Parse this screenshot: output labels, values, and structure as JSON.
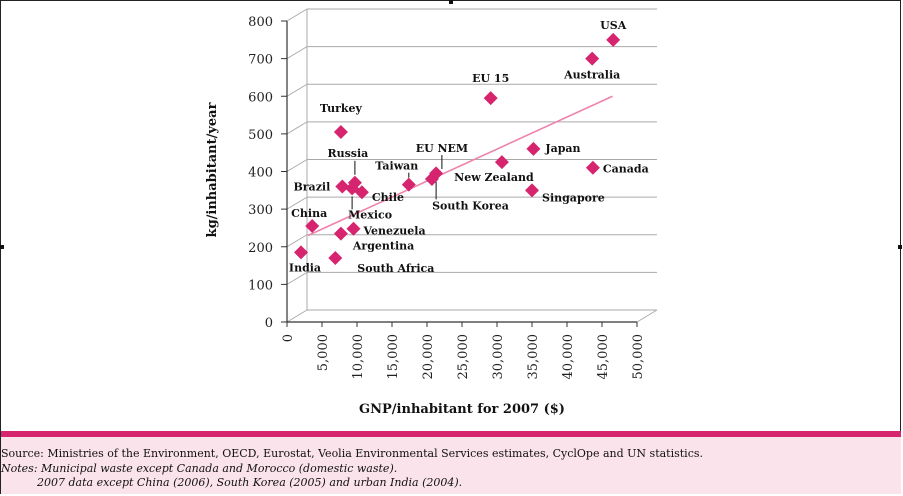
{
  "chart_data": {
    "type": "scatter",
    "title": "",
    "xlabel": "GNP/inhabitant for 2007 ($)",
    "ylabel": "kg/inhabitant/year",
    "xlim": [
      0,
      50000
    ],
    "ylim": [
      0,
      800
    ],
    "x_ticks": [
      0,
      5000,
      10000,
      15000,
      20000,
      25000,
      30000,
      35000,
      40000,
      45000,
      50000
    ],
    "x_tick_labels": [
      "0",
      "5,000",
      "10,000",
      "15,000",
      "20,000",
      "25,000",
      "30,000",
      "35,000",
      "40,000",
      "45,000",
      "50,000"
    ],
    "y_ticks": [
      0,
      100,
      200,
      300,
      400,
      500,
      600,
      700,
      800
    ],
    "y_tick_labels": [
      "0",
      "100",
      "200",
      "300",
      "400",
      "500",
      "600",
      "700",
      "800"
    ],
    "grid": "horizontal",
    "colors": {
      "points": "#d6246e",
      "trend": "#ee83ad",
      "grid": "#aaaaaa"
    },
    "points": [
      {
        "label": "USA",
        "x": 46600,
        "y": 750
      },
      {
        "label": "Australia",
        "x": 43600,
        "y": 700
      },
      {
        "label": "EU 15",
        "x": 29100,
        "y": 595
      },
      {
        "label": "Turkey",
        "x": 7700,
        "y": 505
      },
      {
        "label": "Japan",
        "x": 35200,
        "y": 460
      },
      {
        "label": "EU NEM",
        "x": 20700,
        "y": 380
      },
      {
        "label": "New Zealand",
        "x": 30700,
        "y": 425
      },
      {
        "label": "Canada",
        "x": 43700,
        "y": 410
      },
      {
        "label": "Russia",
        "x": 9700,
        "y": 370
      },
      {
        "label": "Taiwan",
        "x": 17400,
        "y": 365
      },
      {
        "label": "Brazil",
        "x": 7900,
        "y": 360
      },
      {
        "label": "Chile",
        "x": 10700,
        "y": 345
      },
      {
        "label": "Mexico",
        "x": 9300,
        "y": 355
      },
      {
        "label": "South Korea",
        "x": 21300,
        "y": 395
      },
      {
        "label": "Singapore",
        "x": 35000,
        "y": 350
      },
      {
        "label": "China",
        "x": 3600,
        "y": 255
      },
      {
        "label": "Venezuela",
        "x": 9500,
        "y": 248
      },
      {
        "label": "Argentina",
        "x": 7700,
        "y": 235
      },
      {
        "label": "India",
        "x": 2000,
        "y": 185
      },
      {
        "label": "South Africa",
        "x": 6900,
        "y": 170
      }
    ],
    "trendline": {
      "x": [
        3000,
        46500
      ],
      "y": [
        230,
        600
      ]
    }
  },
  "footer": {
    "source": "Source: Ministries of the Environment, OECD, Eurostat, Veolia Environmental Services estimates, CyclOpe and UN statistics.",
    "notes": "Notes: Municipal waste except Canada and Morocco (domestic waste).",
    "notes_line2": "2007 data except China (2006), South Korea (2005) and urban India (2004)."
  }
}
